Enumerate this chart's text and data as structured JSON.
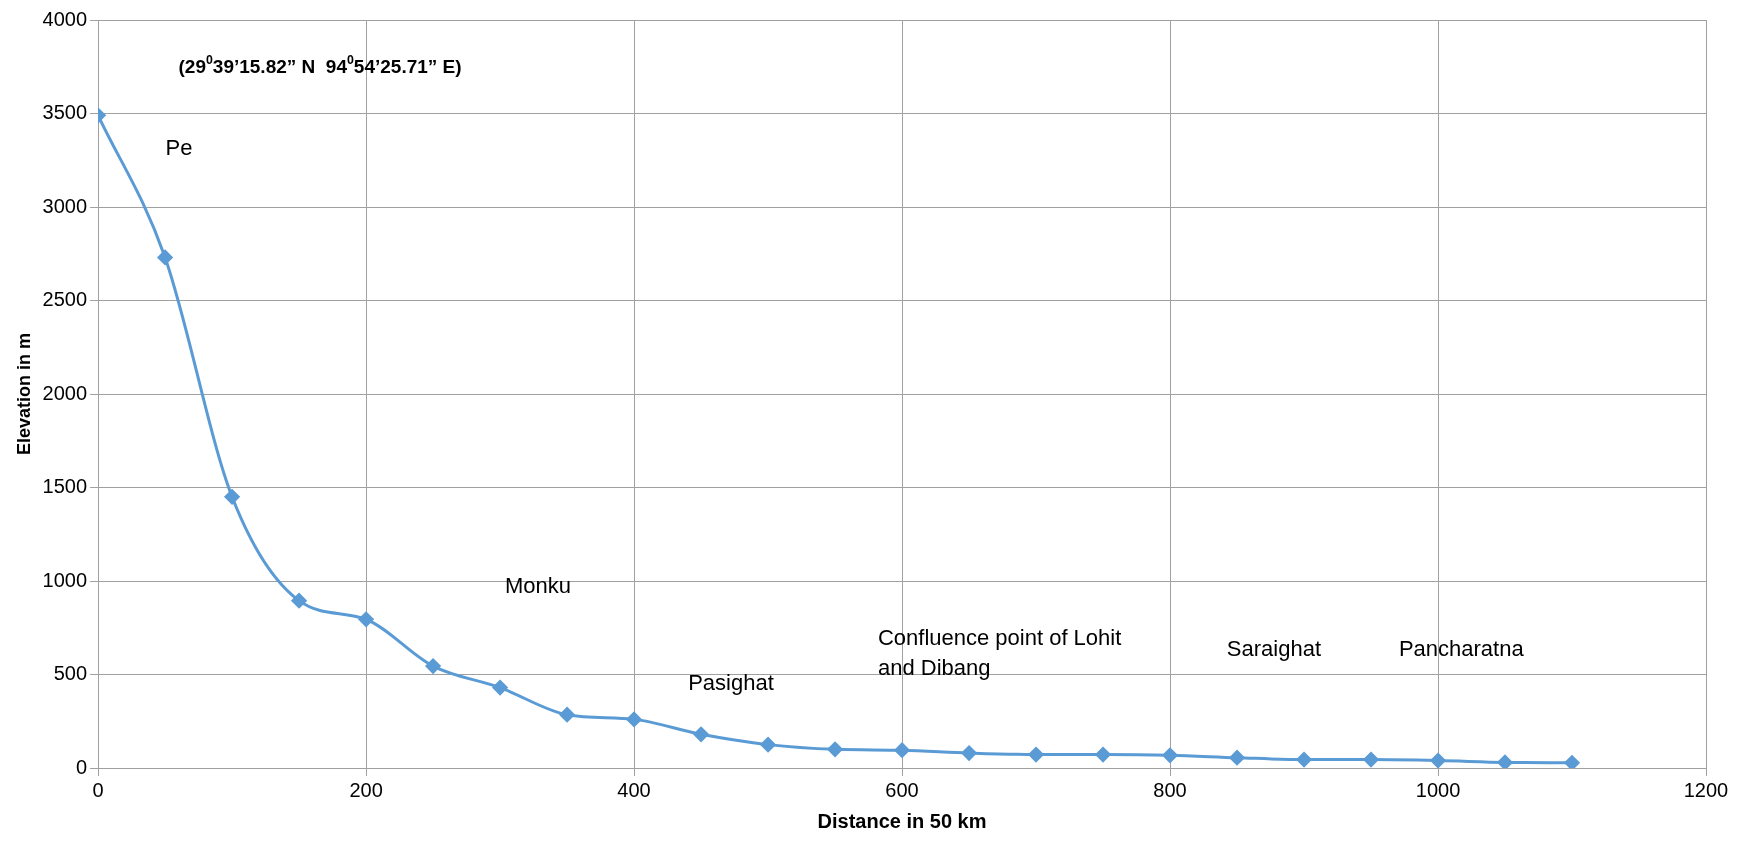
{
  "chart_data": {
    "type": "line",
    "xlabel": "Distance in 50 km",
    "ylabel": "Elevation in m",
    "x": [
      0,
      50,
      100,
      150,
      200,
      250,
      300,
      350,
      400,
      450,
      500,
      550,
      600,
      650,
      700,
      750,
      800,
      850,
      900,
      950,
      1000,
      1050,
      1100
    ],
    "series": [
      {
        "color": "#5b9bd5",
        "values": [
          3490,
          2730,
          1450,
          895,
          795,
          545,
          430,
          285,
          260,
          180,
          125,
          100,
          95,
          80,
          72,
          72,
          68,
          55,
          45,
          45,
          40,
          30,
          28
        ]
      }
    ],
    "xlim": [
      0,
      1200
    ],
    "xticks": [
      0,
      200,
      400,
      600,
      800,
      1000,
      1200
    ],
    "ylim": [
      0,
      4000
    ],
    "yticks": [
      0,
      500,
      1000,
      1500,
      2000,
      2500,
      3000,
      3500,
      4000
    ],
    "grid": true,
    "legend": false,
    "marker": "diamond",
    "line_style": "solid",
    "annotations": [
      "(29$^{0}$39’15.82” N  94$^{0}$54’25.71” E)",
      "Pe",
      "Monku",
      "Pasighat",
      "Confluence point of Lohit and Dibang",
      "Saraighat",
      "Pancharatna"
    ]
  }
}
